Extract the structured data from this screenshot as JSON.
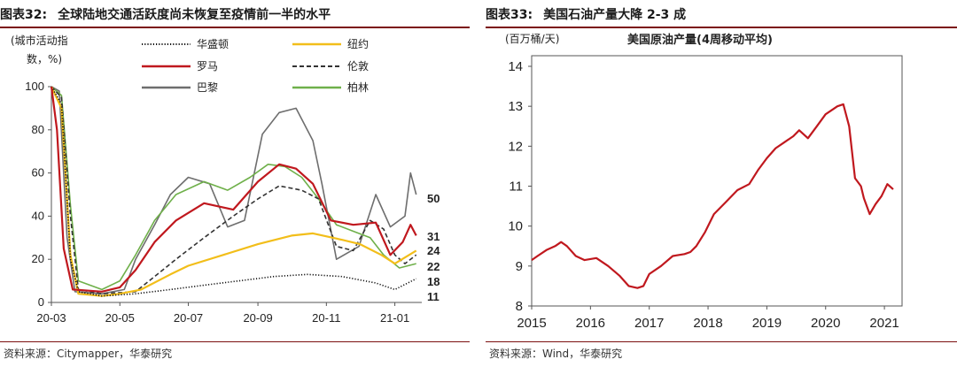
{
  "left": {
    "figure_label": "图表32:",
    "title": "全球陆地交通活跃度尚未恢复至疫情前一半的水平",
    "source": "资料来源：Citymapper，华泰研究",
    "chart_data": {
      "type": "line",
      "ylabel_line1": "(城市活动指",
      "ylabel_line2": "数，%)",
      "ylim": [
        0,
        100
      ],
      "yticks": [
        "0",
        "20",
        "40",
        "60",
        "80",
        "100"
      ],
      "xticks": [
        "20-03",
        "20-05",
        "20-07",
        "20-09",
        "20-11",
        "21-01"
      ],
      "x_range": [
        "2020-03-01",
        "2021-01-25"
      ],
      "grid": false,
      "legend_position": "top",
      "series": [
        {
          "name": "华盛顿",
          "color": "#111111",
          "style": "dotted",
          "end_label": "11",
          "points": [
            [
              "2020-03-01",
              100
            ],
            [
              "2020-03-10",
              92
            ],
            [
              "2020-03-18",
              20
            ],
            [
              "2020-03-25",
              5
            ],
            [
              "2020-04-15",
              3
            ],
            [
              "2020-05-15",
              4
            ],
            [
              "2020-06-15",
              6
            ],
            [
              "2020-07-15",
              8
            ],
            [
              "2020-08-15",
              10
            ],
            [
              "2020-09-15",
              12
            ],
            [
              "2020-10-15",
              13
            ],
            [
              "2020-11-15",
              12
            ],
            [
              "2020-12-15",
              9
            ],
            [
              "2021-01-01",
              6
            ],
            [
              "2021-01-20",
              11
            ]
          ]
        },
        {
          "name": "纽约",
          "color": "#f2be1a",
          "style": "solid",
          "end_label": "24",
          "points": [
            [
              "2020-03-01",
              100
            ],
            [
              "2020-03-10",
              90
            ],
            [
              "2020-03-18",
              22
            ],
            [
              "2020-03-25",
              4
            ],
            [
              "2020-04-15",
              3
            ],
            [
              "2020-05-01",
              4
            ],
            [
              "2020-05-20",
              6
            ],
            [
              "2020-06-15",
              13
            ],
            [
              "2020-07-01",
              17
            ],
            [
              "2020-08-01",
              22
            ],
            [
              "2020-09-01",
              27
            ],
            [
              "2020-10-01",
              31
            ],
            [
              "2020-10-20",
              32
            ],
            [
              "2020-11-15",
              29
            ],
            [
              "2020-12-01",
              27
            ],
            [
              "2020-12-20",
              22
            ],
            [
              "2021-01-01",
              18
            ],
            [
              "2021-01-20",
              24
            ]
          ]
        },
        {
          "name": "罗马",
          "color": "#c0181e",
          "style": "solid",
          "end_label": "31",
          "points": [
            [
              "2020-03-01",
              100
            ],
            [
              "2020-03-06",
              80
            ],
            [
              "2020-03-12",
              25
            ],
            [
              "2020-03-20",
              6
            ],
            [
              "2020-04-15",
              5
            ],
            [
              "2020-05-01",
              7
            ],
            [
              "2020-05-15",
              15
            ],
            [
              "2020-06-01",
              28
            ],
            [
              "2020-06-20",
              38
            ],
            [
              "2020-07-15",
              46
            ],
            [
              "2020-08-10",
              43
            ],
            [
              "2020-09-01",
              56
            ],
            [
              "2020-09-20",
              64
            ],
            [
              "2020-10-05",
              62
            ],
            [
              "2020-10-20",
              55
            ],
            [
              "2020-11-05",
              38
            ],
            [
              "2020-11-25",
              36
            ],
            [
              "2020-12-15",
              37
            ],
            [
              "2020-12-28",
              22
            ],
            [
              "2021-01-08",
              28
            ],
            [
              "2021-01-15",
              36
            ],
            [
              "2021-01-20",
              31
            ]
          ]
        },
        {
          "name": "伦敦",
          "color": "#333333",
          "style": "dashed",
          "end_label": "22",
          "points": [
            [
              "2020-03-01",
              100
            ],
            [
              "2020-03-10",
              95
            ],
            [
              "2020-03-18",
              40
            ],
            [
              "2020-03-25",
              6
            ],
            [
              "2020-04-15",
              4
            ],
            [
              "2020-05-15",
              5
            ],
            [
              "2020-06-01",
              12
            ],
            [
              "2020-06-20",
              20
            ],
            [
              "2020-07-15",
              30
            ],
            [
              "2020-08-10",
              40
            ],
            [
              "2020-09-01",
              48
            ],
            [
              "2020-09-20",
              54
            ],
            [
              "2020-10-10",
              52
            ],
            [
              "2020-10-25",
              48
            ],
            [
              "2020-11-10",
              26
            ],
            [
              "2020-11-25",
              24
            ],
            [
              "2020-12-10",
              38
            ],
            [
              "2020-12-22",
              34
            ],
            [
              "2021-01-01",
              22
            ],
            [
              "2021-01-10",
              18
            ],
            [
              "2021-01-20",
              22
            ]
          ]
        },
        {
          "name": "巴黎",
          "color": "#6e6e6e",
          "style": "solid",
          "end_label": "50",
          "points": [
            [
              "2020-03-01",
              100
            ],
            [
              "2020-03-08",
              98
            ],
            [
              "2020-03-15",
              30
            ],
            [
              "2020-03-22",
              5
            ],
            [
              "2020-04-15",
              4
            ],
            [
              "2020-05-05",
              6
            ],
            [
              "2020-05-15",
              20
            ],
            [
              "2020-06-01",
              36
            ],
            [
              "2020-06-15",
              50
            ],
            [
              "2020-07-01",
              58
            ],
            [
              "2020-07-20",
              55
            ],
            [
              "2020-08-05",
              35
            ],
            [
              "2020-08-20",
              38
            ],
            [
              "2020-09-05",
              78
            ],
            [
              "2020-09-20",
              88
            ],
            [
              "2020-10-05",
              90
            ],
            [
              "2020-10-20",
              75
            ],
            [
              "2020-10-28",
              55
            ],
            [
              "2020-11-10",
              20
            ],
            [
              "2020-11-30",
              26
            ],
            [
              "2020-12-15",
              50
            ],
            [
              "2020-12-28",
              35
            ],
            [
              "2021-01-10",
              40
            ],
            [
              "2021-01-15",
              60
            ],
            [
              "2021-01-20",
              50
            ]
          ]
        },
        {
          "name": "柏林",
          "color": "#6fb04a",
          "style": "solid",
          "end_label": "18",
          "points": [
            [
              "2020-03-01",
              100
            ],
            [
              "2020-03-10",
              96
            ],
            [
              "2020-03-18",
              45
            ],
            [
              "2020-03-25",
              10
            ],
            [
              "2020-04-15",
              6
            ],
            [
              "2020-05-01",
              10
            ],
            [
              "2020-05-15",
              22
            ],
            [
              "2020-06-01",
              38
            ],
            [
              "2020-06-20",
              50
            ],
            [
              "2020-07-15",
              56
            ],
            [
              "2020-08-05",
              52
            ],
            [
              "2020-08-25",
              58
            ],
            [
              "2020-09-10",
              64
            ],
            [
              "2020-09-25",
              63
            ],
            [
              "2020-10-10",
              58
            ],
            [
              "2020-10-25",
              48
            ],
            [
              "2020-11-10",
              36
            ],
            [
              "2020-11-25",
              33
            ],
            [
              "2020-12-10",
              30
            ],
            [
              "2020-12-22",
              22
            ],
            [
              "2021-01-05",
              16
            ],
            [
              "2021-01-20",
              18
            ]
          ]
        }
      ]
    }
  },
  "right": {
    "figure_label": "图表33:",
    "title": "美国石油产量大降 2-3 成",
    "source": "资料来源：Wind，华泰研究",
    "chart_data": {
      "type": "line",
      "title": "美国原油产量(4周移动平均)",
      "ylabel": "(百万桶/天)",
      "ylim": [
        8,
        14
      ],
      "yticks": [
        "8",
        "9",
        "10",
        "11",
        "12",
        "13",
        "14"
      ],
      "xlim": [
        2015.0,
        2021.3
      ],
      "xticks": [
        "2015",
        "2016",
        "2017",
        "2018",
        "2019",
        "2020",
        "2021"
      ],
      "grid": false,
      "series": [
        {
          "name": "",
          "color": "#c0181e",
          "x": [
            2015.0,
            2015.1,
            2015.25,
            2015.4,
            2015.5,
            2015.6,
            2015.75,
            2015.9,
            2016.1,
            2016.3,
            2016.5,
            2016.65,
            2016.8,
            2016.9,
            2017.0,
            2017.2,
            2017.4,
            2017.6,
            2017.7,
            2017.8,
            2017.95,
            2018.1,
            2018.3,
            2018.5,
            2018.7,
            2018.85,
            2019.0,
            2019.15,
            2019.3,
            2019.45,
            2019.55,
            2019.7,
            2019.85,
            2020.0,
            2020.1,
            2020.2,
            2020.3,
            2020.4,
            2020.5,
            2020.6,
            2020.65,
            2020.75,
            2020.85,
            2020.95,
            2021.05,
            2021.15
          ],
          "y": [
            9.15,
            9.25,
            9.4,
            9.5,
            9.6,
            9.5,
            9.25,
            9.15,
            9.2,
            9.0,
            8.75,
            8.5,
            8.45,
            8.5,
            8.8,
            9.0,
            9.25,
            9.3,
            9.35,
            9.5,
            9.85,
            10.3,
            10.6,
            10.9,
            11.05,
            11.4,
            11.7,
            11.95,
            12.1,
            12.25,
            12.4,
            12.2,
            12.5,
            12.8,
            12.9,
            13.0,
            13.05,
            12.5,
            11.2,
            11.0,
            10.7,
            10.3,
            10.55,
            10.75,
            11.05,
            10.92
          ]
        }
      ]
    }
  }
}
